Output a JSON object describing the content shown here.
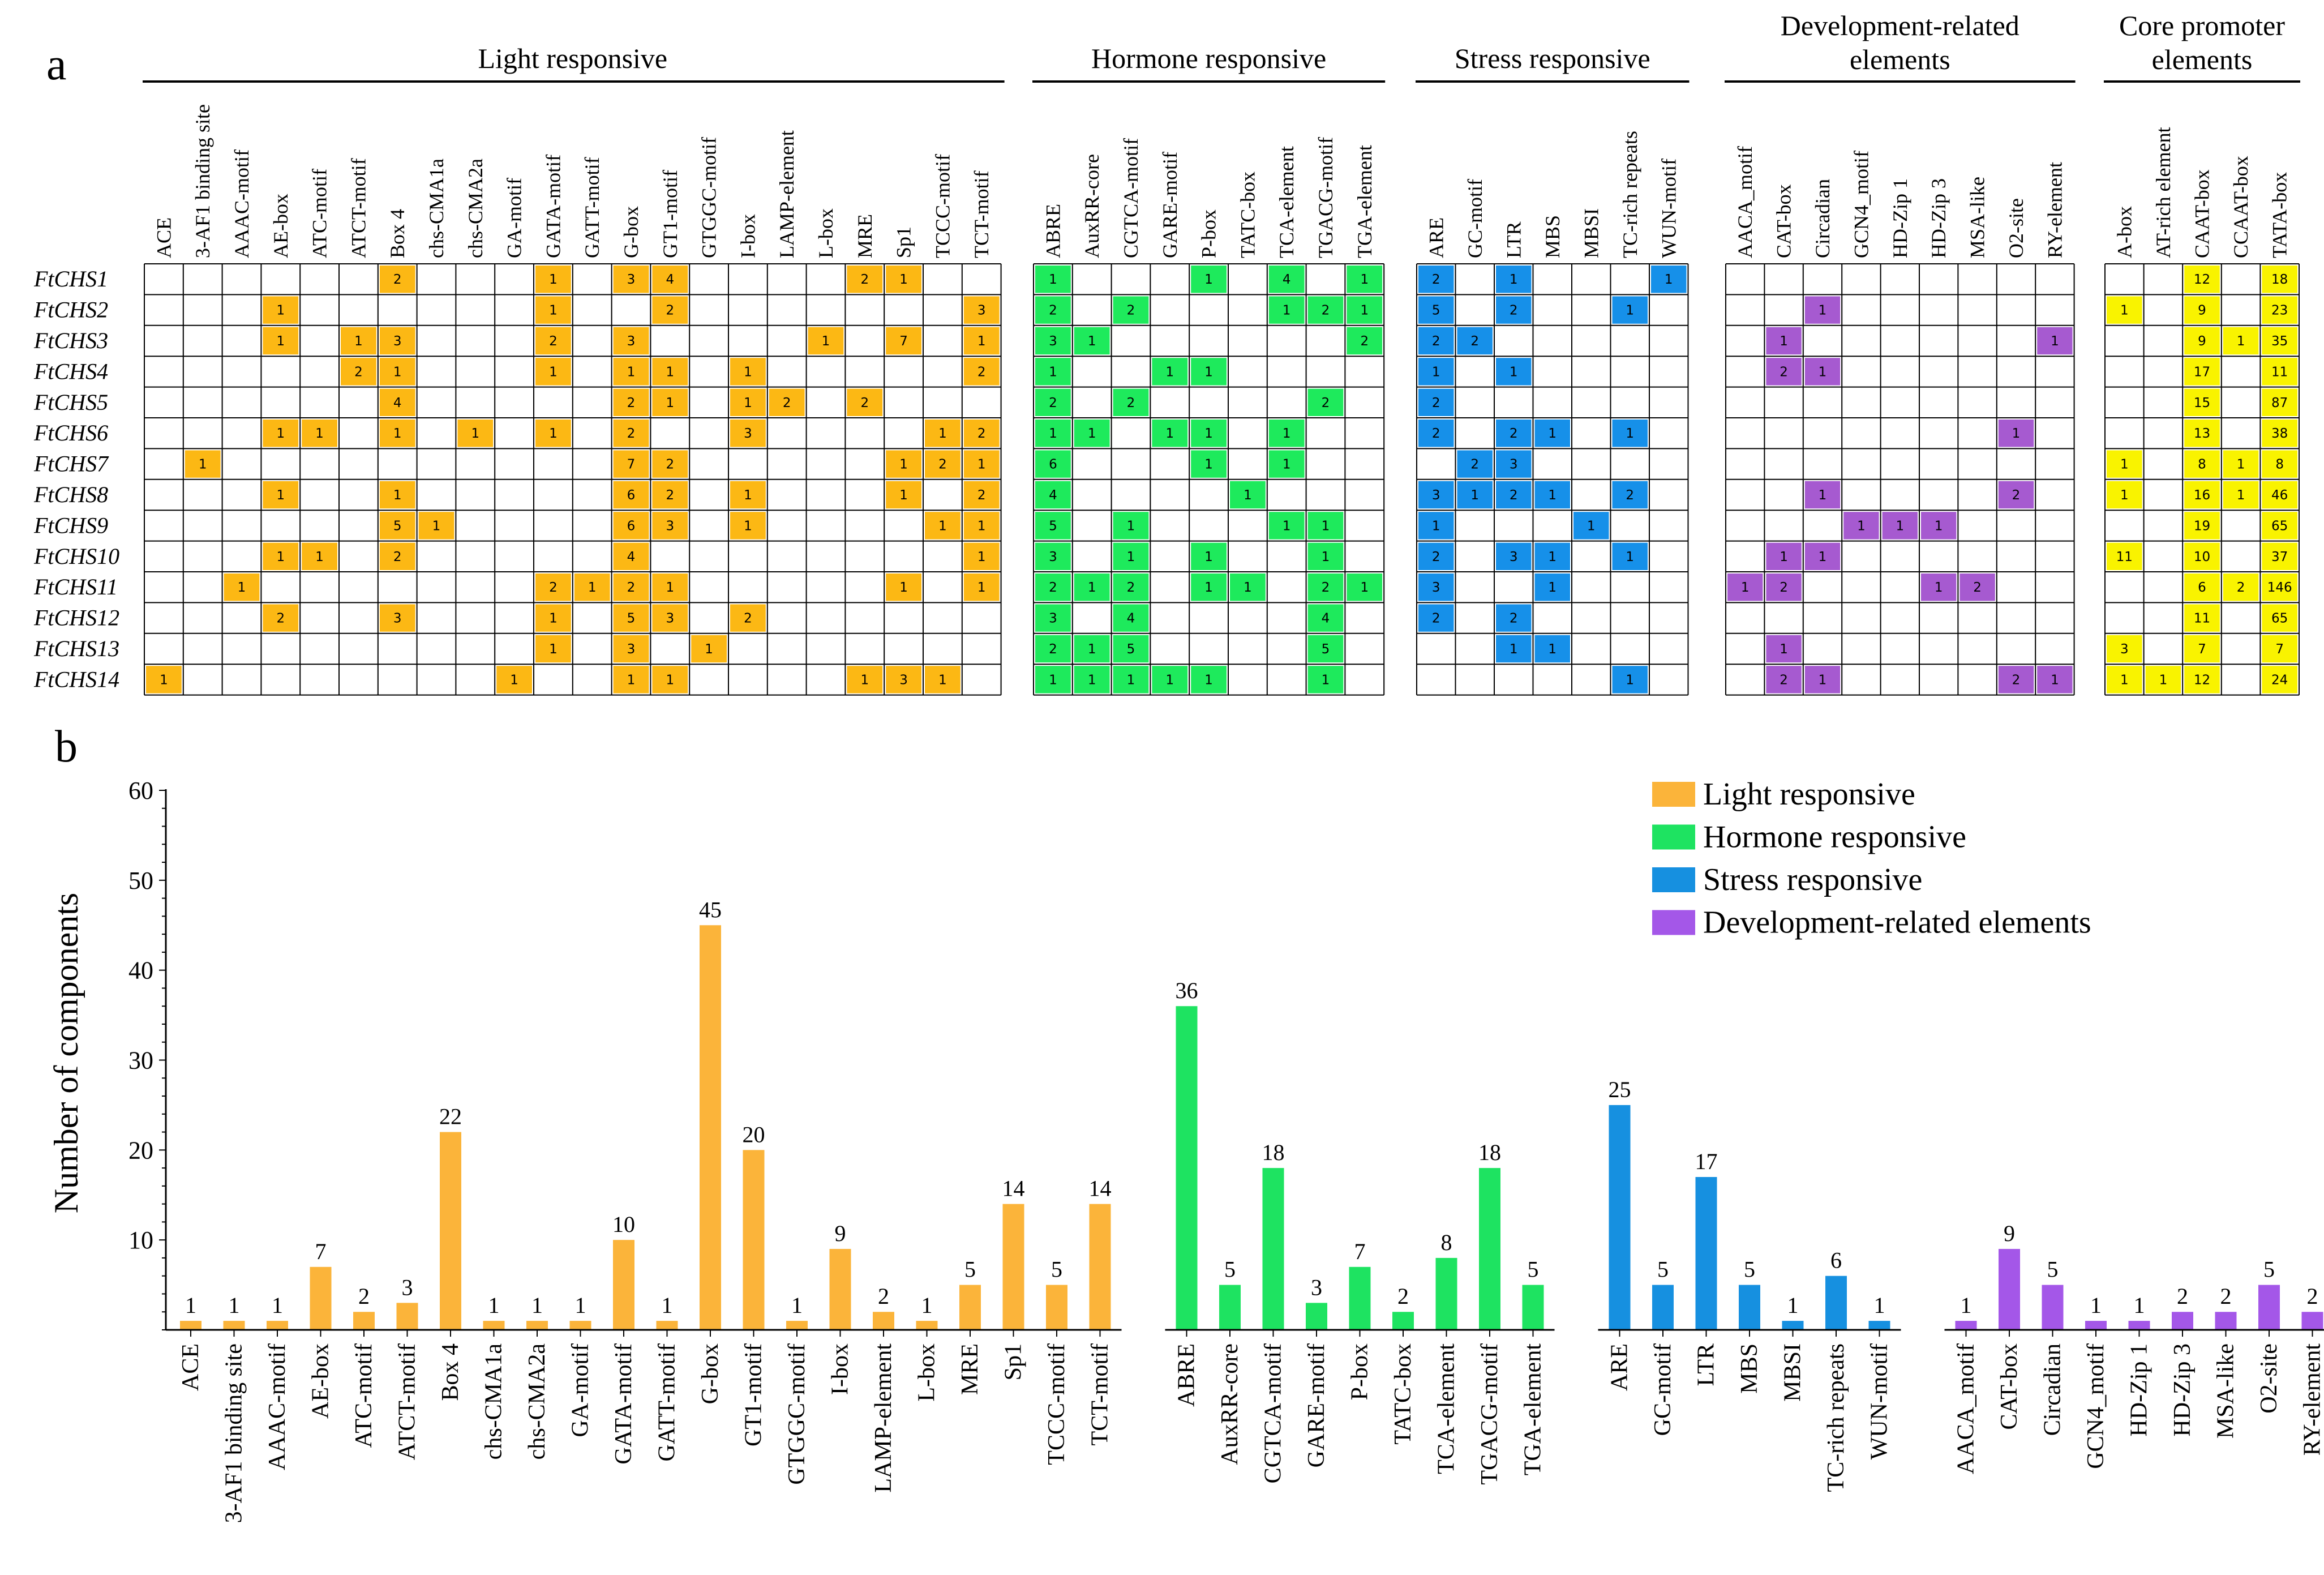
{
  "panel_labels": {
    "a": "a",
    "b": "b"
  },
  "colors": {
    "light": "#fbb43a",
    "hormone": "#1ee361",
    "stress": "#1690e0",
    "development": "#a457e8",
    "core": "#f7f11c",
    "grid": "#000000",
    "cell_light": "#fcb814",
    "cell_hormone": "#1eea5c",
    "cell_stress": "#1690e9",
    "cell_development": "#a65ad0",
    "cell_core": "#f9f300"
  },
  "heatmap": {
    "genes": [
      "FtCHS1",
      "FtCHS2",
      "FtCHS3",
      "FtCHS4",
      "FtCHS5",
      "FtCHS6",
      "FtCHS7",
      "FtCHS8",
      "FtCHS9",
      "FtCHS10",
      "FtCHS11",
      "FtCHS12",
      "FtCHS13",
      "FtCHS14"
    ],
    "groups": [
      {
        "name": "Light responsive",
        "key": "light",
        "title_lines": [
          "Light responsive"
        ],
        "elements": [
          "ACE",
          "3-AF1 binding site",
          "AAAC-motif",
          "AE-box",
          "ATC-motif",
          "ATCT-motif",
          "Box 4",
          "chs-CMA1a",
          "chs-CMA2a",
          "GA-motif",
          "GATA-motif",
          "GATT-motif",
          "G-box",
          "GT1-motif",
          "GTGGC-motif",
          "I-box",
          "LAMP-element",
          "L-box",
          "MRE",
          "Sp1",
          "TCCC-motif",
          "TCT-motif"
        ],
        "values": [
          [
            "",
            "",
            "",
            "",
            "",
            "",
            "2",
            "",
            "",
            "",
            "1",
            "",
            "3",
            "4",
            "",
            "",
            "",
            "",
            "2",
            "1",
            "",
            ""
          ],
          [
            "",
            "",
            "",
            "1",
            "",
            "",
            "",
            "",
            "",
            "",
            "1",
            "",
            "",
            "2",
            "",
            "",
            "",
            "",
            "",
            "",
            "",
            "3"
          ],
          [
            "",
            "",
            "",
            "1",
            "",
            "1",
            "3",
            "",
            "",
            "",
            "2",
            "",
            "3",
            "",
            "",
            "",
            "",
            "1",
            "",
            "7",
            "",
            "1"
          ],
          [
            "",
            "",
            "",
            "",
            "",
            "2",
            "1",
            "",
            "",
            "",
            "1",
            "",
            "1",
            "1",
            "",
            "1",
            "",
            "",
            "",
            "",
            "",
            "2"
          ],
          [
            "",
            "",
            "",
            "",
            "",
            "",
            "4",
            "",
            "",
            "",
            "",
            "",
            "2",
            "1",
            "",
            "1",
            "2",
            "",
            "2",
            "",
            "",
            ""
          ],
          [
            "",
            "",
            "",
            "1",
            "1",
            "",
            "1",
            "",
            "1",
            "",
            "1",
            "",
            "2",
            "",
            "",
            "3",
            "",
            "",
            "",
            "",
            "1",
            "2"
          ],
          [
            "",
            "1",
            "",
            "",
            "",
            "",
            "",
            "",
            "",
            "",
            "",
            "",
            "7",
            "2",
            "",
            "",
            "",
            "",
            "",
            "1",
            "2",
            "1"
          ],
          [
            "",
            "",
            "",
            "1",
            "",
            "",
            "1",
            "",
            "",
            "",
            "",
            "",
            "6",
            "2",
            "",
            "1",
            "",
            "",
            "",
            "1",
            "",
            "2"
          ],
          [
            "",
            "",
            "",
            "",
            "",
            "",
            "5",
            "1",
            "",
            "",
            "",
            "",
            "6",
            "3",
            "",
            "1",
            "",
            "",
            "",
            "",
            "1",
            "1"
          ],
          [
            "",
            "",
            "",
            "1",
            "1",
            "",
            "2",
            "",
            "",
            "",
            "",
            "",
            "4",
            "",
            "",
            "",
            "",
            "",
            "",
            "",
            "",
            "1"
          ],
          [
            "",
            "",
            "1",
            "",
            "",
            "",
            "",
            "",
            "",
            "",
            "2",
            "1",
            "2",
            "1",
            "",
            "",
            "",
            "",
            "",
            "1",
            "",
            "1"
          ],
          [
            "",
            "",
            "",
            "2",
            "",
            "",
            "3",
            "",
            "",
            "",
            "1",
            "",
            "5",
            "3",
            "",
            "2",
            "",
            "",
            "",
            "",
            "",
            ""
          ],
          [
            "",
            "",
            "",
            "",
            "",
            "",
            "",
            "",
            "",
            "",
            "1",
            "",
            "3",
            "",
            "1",
            "",
            "",
            "",
            "",
            "",
            "",
            ""
          ],
          [
            "1",
            "",
            "",
            "",
            "",
            "",
            "",
            "",
            "",
            "1",
            "",
            "",
            "1",
            "1",
            "",
            "",
            "",
            "",
            "1",
            "3",
            "1",
            ""
          ]
        ]
      },
      {
        "name": "Hormone responsive",
        "key": "hormone",
        "title_lines": [
          "Hormone responsive"
        ],
        "elements": [
          "ABRE",
          "AuxRR-core",
          "CGTCA-motif",
          "GARE-motif",
          "P-box",
          "TATC-box",
          "TCA-element",
          "TGACG-motif",
          "TGA-element"
        ],
        "values": [
          [
            "1",
            "",
            "",
            "",
            "1",
            "",
            "4",
            "",
            "1"
          ],
          [
            "2",
            "",
            "2",
            "",
            "",
            "",
            "1",
            "2",
            "1"
          ],
          [
            "3",
            "1",
            "",
            "",
            "",
            "",
            "",
            "",
            "2"
          ],
          [
            "1",
            "",
            "",
            "1",
            "1",
            "",
            "",
            "",
            ""
          ],
          [
            "2",
            "",
            "2",
            "",
            "",
            "",
            "",
            "2",
            ""
          ],
          [
            "1",
            "1",
            "",
            "1",
            "1",
            "",
            "1",
            "",
            ""
          ],
          [
            "6",
            "",
            "",
            "",
            "1",
            "",
            "1",
            "",
            ""
          ],
          [
            "4",
            "",
            "",
            "",
            "",
            "1",
            "",
            "",
            ""
          ],
          [
            "5",
            "",
            "1",
            "",
            "",
            "",
            "1",
            "1",
            ""
          ],
          [
            "3",
            "",
            "1",
            "",
            "1",
            "",
            "",
            "1",
            ""
          ],
          [
            "2",
            "1",
            "2",
            "",
            "1",
            "1",
            "",
            "2",
            "1"
          ],
          [
            "3",
            "",
            "4",
            "",
            "",
            "",
            "",
            "4",
            ""
          ],
          [
            "2",
            "1",
            "5",
            "",
            "",
            "",
            "",
            "5",
            ""
          ],
          [
            "1",
            "1",
            "1",
            "1",
            "1",
            "",
            "",
            "1",
            ""
          ]
        ]
      },
      {
        "name": "Stress responsive",
        "key": "stress",
        "title_lines": [
          "Stress responsive"
        ],
        "elements": [
          "ARE",
          "GC-motif",
          "LTR",
          "MBS",
          "MBSI",
          "TC-rich repeats",
          "WUN-motif"
        ],
        "values": [
          [
            "2",
            "",
            "1",
            "",
            "",
            "",
            "1"
          ],
          [
            "5",
            "",
            "2",
            "",
            "",
            "1",
            ""
          ],
          [
            "2",
            "2",
            "",
            "",
            "",
            "",
            ""
          ],
          [
            "1",
            "",
            "1",
            "",
            "",
            "",
            ""
          ],
          [
            "2",
            "",
            "",
            "",
            "",
            "",
            ""
          ],
          [
            "2",
            "",
            "2",
            "1",
            "",
            "1",
            ""
          ],
          [
            "",
            "2",
            "3",
            "",
            "",
            "",
            ""
          ],
          [
            "3",
            "1",
            "2",
            "1",
            "",
            "2",
            ""
          ],
          [
            "1",
            "",
            "",
            "",
            "1",
            "",
            ""
          ],
          [
            "2",
            "",
            "3",
            "1",
            "",
            "1",
            ""
          ],
          [
            "3",
            "",
            "",
            "1",
            "",
            "",
            ""
          ],
          [
            "2",
            "",
            "2",
            "",
            "",
            "",
            ""
          ],
          [
            "",
            "",
            "1",
            "1",
            "",
            "",
            ""
          ],
          [
            "",
            "",
            "",
            "",
            "",
            "1",
            ""
          ]
        ]
      },
      {
        "name": "Development-related elements",
        "key": "development",
        "title_lines": [
          "Development-related",
          "elements"
        ],
        "elements": [
          "AACA_motif",
          "CAT-box",
          "Circadian",
          "GCN4_motif",
          "HD-Zip 1",
          "HD-Zip 3",
          "MSA-like",
          "O2-site",
          "RY-element"
        ],
        "values": [
          [
            "",
            "",
            "",
            "",
            "",
            "",
            "",
            "",
            ""
          ],
          [
            "",
            "",
            "1",
            "",
            "",
            "",
            "",
            "",
            ""
          ],
          [
            "",
            "1",
            "",
            "",
            "",
            "",
            "",
            "",
            "1"
          ],
          [
            "",
            "2",
            "1",
            "",
            "",
            "",
            "",
            "",
            ""
          ],
          [
            "",
            "",
            "",
            "",
            "",
            "",
            "",
            "",
            ""
          ],
          [
            "",
            "",
            "",
            "",
            "",
            "",
            "",
            "1",
            ""
          ],
          [
            "",
            "",
            "",
            "",
            "",
            "",
            "",
            "",
            ""
          ],
          [
            "",
            "",
            "1",
            "",
            "",
            "",
            "",
            "2",
            ""
          ],
          [
            "",
            "",
            "",
            "1",
            "1",
            "1",
            "",
            "",
            ""
          ],
          [
            "",
            "1",
            "1",
            "",
            "",
            "",
            "",
            "",
            ""
          ],
          [
            "1",
            "2",
            "",
            "",
            "",
            "1",
            "2",
            "",
            ""
          ],
          [
            "",
            "",
            "",
            "",
            "",
            "",
            "",
            "",
            ""
          ],
          [
            "",
            "1",
            "",
            "",
            "",
            "",
            "",
            "",
            ""
          ],
          [
            "",
            "2",
            "1",
            "",
            "",
            "",
            "",
            "2",
            "1"
          ]
        ]
      },
      {
        "name": "Core promoter elements",
        "key": "core",
        "title_lines": [
          "Core promoter",
          "elements"
        ],
        "elements": [
          "A-box",
          "AT-rich element",
          "CAAT-box",
          "CCAAT-box",
          "TATA-box"
        ],
        "values": [
          [
            "",
            "",
            "12",
            "",
            "18"
          ],
          [
            "1",
            "",
            "9",
            "",
            "23"
          ],
          [
            "",
            "",
            "9",
            "1",
            "35"
          ],
          [
            "",
            "",
            "17",
            "",
            "11"
          ],
          [
            "",
            "",
            "15",
            "",
            "87"
          ],
          [
            "",
            "",
            "13",
            "",
            "38"
          ],
          [
            "1",
            "",
            "8",
            "1",
            "8"
          ],
          [
            "1",
            "",
            "16",
            "1",
            "46"
          ],
          [
            "",
            "",
            "19",
            "",
            "65"
          ],
          [
            "11",
            "",
            "10",
            "",
            "37"
          ],
          [
            "",
            "",
            "6",
            "2",
            "146"
          ],
          [
            "",
            "",
            "11",
            "",
            "65"
          ],
          [
            "3",
            "",
            "7",
            "",
            "7"
          ],
          [
            "1",
            "1",
            "12",
            "",
            "24"
          ]
        ]
      }
    ]
  },
  "chart_data": {
    "type": "bar",
    "ylabel": "Number of components",
    "xlabel": "",
    "ylim": [
      0,
      60
    ],
    "yticks": [
      10,
      20,
      30,
      40,
      50,
      60
    ],
    "legend_position": "top-right",
    "legend": [
      {
        "label": "Light responsive",
        "key": "light"
      },
      {
        "label": "Hormone responsive",
        "key": "hormone"
      },
      {
        "label": "Stress responsive",
        "key": "stress"
      },
      {
        "label": "Development-related elements",
        "key": "development"
      }
    ],
    "series": [
      {
        "name": "Light responsive",
        "key": "light",
        "categories": [
          "ACE",
          "3-AF1 binding site",
          "AAAC-motif",
          "AE-box",
          "ATC-motif",
          "ATCT-motif",
          "Box 4",
          "chs-CMA1a",
          "chs-CMA2a",
          "GA-motif",
          "GATA-motif",
          "GATT-motif",
          "G-box",
          "GT1-motif",
          "GTGGC-motif",
          "I-box",
          "LAMP-element",
          "L-box",
          "MRE",
          "Sp1",
          "TCCC-motif",
          "TCT-motif"
        ],
        "values": [
          1,
          1,
          1,
          7,
          2,
          3,
          22,
          1,
          1,
          1,
          10,
          1,
          45,
          20,
          1,
          9,
          2,
          1,
          5,
          14,
          5,
          14
        ]
      },
      {
        "name": "Hormone responsive",
        "key": "hormone",
        "categories": [
          "ABRE",
          "AuxRR-core",
          "CGTCA-motif",
          "GARE-motif",
          "P-box",
          "TATC-box",
          "TCA-element",
          "TGACG-motif",
          "TGA-element"
        ],
        "values": [
          36,
          5,
          18,
          3,
          7,
          2,
          8,
          18,
          5
        ]
      },
      {
        "name": "Stress responsive",
        "key": "stress",
        "categories": [
          "ARE",
          "GC-motif",
          "LTR",
          "MBS",
          "MBSI",
          "TC-rich repeats",
          "WUN-motif"
        ],
        "values": [
          25,
          5,
          17,
          5,
          1,
          6,
          1
        ]
      },
      {
        "name": "Development-related elements",
        "key": "development",
        "categories": [
          "AACA_motif",
          "CAT-box",
          "Circadian",
          "GCN4_motif",
          "HD-Zip 1",
          "HD-Zip 3",
          "MSA-like",
          "O2-site",
          "RY-element"
        ],
        "values": [
          1,
          9,
          5,
          1,
          1,
          2,
          2,
          5,
          2
        ]
      }
    ]
  }
}
